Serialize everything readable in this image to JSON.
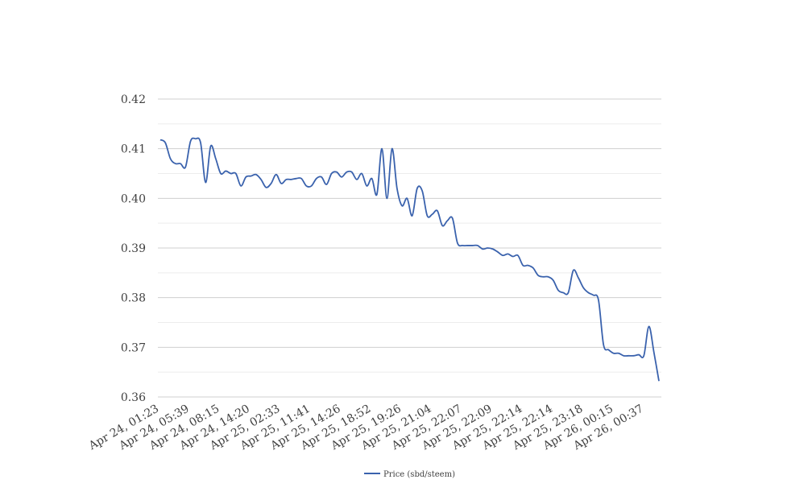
{
  "chart_data": {
    "type": "line",
    "title": "",
    "xlabel": "",
    "ylabel": "",
    "ylim": [
      0.36,
      0.42
    ],
    "yticks": [
      "0.36",
      "0.37",
      "0.38",
      "0.39",
      "0.40",
      "0.41",
      "0.42"
    ],
    "ytick_values": [
      0.36,
      0.37,
      0.38,
      0.39,
      0.4,
      0.41,
      0.42
    ],
    "minor_grid": true,
    "legend_position": "bottom",
    "x_tick_labels": [
      "Apr 24, 01:23",
      "Apr 24, 05:39",
      "Apr 24, 08:15",
      "Apr 24, 14:20",
      "Apr 25, 02:33",
      "Apr 25, 11:41",
      "Apr 25, 14:26",
      "Apr 25, 18:52",
      "Apr 25, 19:26",
      "Apr 25, 21:04",
      "Apr 25, 22:07",
      "Apr 25, 22:09",
      "Apr 25, 22:14",
      "Apr 25, 22:14",
      "Apr 25, 23:18",
      "Apr 26, 00:15",
      "Apr 26, 00:37"
    ],
    "series": [
      {
        "name": "Price (sbd/steem)",
        "color": "#3a62ad",
        "values": [
          0.4118,
          0.4112,
          0.408,
          0.407,
          0.407,
          0.4063,
          0.4115,
          0.412,
          0.4112,
          0.4032,
          0.4105,
          0.408,
          0.405,
          0.4055,
          0.405,
          0.405,
          0.4025,
          0.4043,
          0.4045,
          0.4048,
          0.4038,
          0.4022,
          0.403,
          0.4048,
          0.403,
          0.4038,
          0.4038,
          0.404,
          0.404,
          0.4025,
          0.4025,
          0.404,
          0.4043,
          0.4028,
          0.405,
          0.4053,
          0.4043,
          0.4053,
          0.4053,
          0.4038,
          0.405,
          0.4025,
          0.404,
          0.4008,
          0.41,
          0.4,
          0.41,
          0.402,
          0.3985,
          0.4,
          0.3965,
          0.402,
          0.4015,
          0.3965,
          0.3968,
          0.3975,
          0.3945,
          0.3955,
          0.396,
          0.391,
          0.3905,
          0.3905,
          0.3905,
          0.3905,
          0.3898,
          0.39,
          0.3898,
          0.3892,
          0.3885,
          0.3888,
          0.3883,
          0.3885,
          0.3865,
          0.3865,
          0.386,
          0.3845,
          0.3842,
          0.3842,
          0.3835,
          0.3815,
          0.381,
          0.381,
          0.3855,
          0.384,
          0.382,
          0.381,
          0.3805,
          0.3795,
          0.3705,
          0.3695,
          0.3688,
          0.3688,
          0.3683,
          0.3683,
          0.3683,
          0.3685,
          0.3683,
          0.3742,
          0.369,
          0.3632
        ]
      }
    ]
  }
}
